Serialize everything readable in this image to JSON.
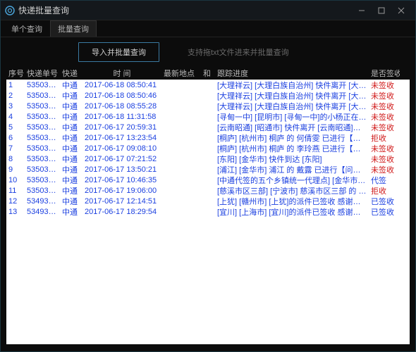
{
  "window": {
    "title": "快递批量查询"
  },
  "tabs": [
    {
      "label": "单个查询",
      "active": false
    },
    {
      "label": "批量查询",
      "active": true
    }
  ],
  "toolbar": {
    "import_button": "导入并批量查询",
    "hint": "支持拖txt文件进来并批量查询"
  },
  "columns": {
    "idx": "序号",
    "no": "快递单号",
    "exp": "快递",
    "time": "时 间",
    "loc": "最新地点",
    "sep": "和",
    "prog": "跟踪进度",
    "sign": "是否签收"
  },
  "rows": [
    {
      "idx": "1",
      "no": "535034",
      "exp": "中通",
      "time": "2017-06-18 08:50:41",
      "prog": "[大理祥云] [大理白族自治州] 快件离开 [大理祥云]...",
      "sign": "未签收",
      "signed": false
    },
    {
      "idx": "2",
      "no": "535034",
      "exp": "中通",
      "time": "2017-06-18 08:50:46",
      "prog": "[大理祥云] [大理白族自治州] 快件离开 [大理祥云]...",
      "sign": "未签收",
      "signed": false
    },
    {
      "idx": "3",
      "no": "53503",
      "exp": "中通",
      "time": "2017-06-18 08:55:28",
      "prog": "[大理祥云] [大理白族自治州] 快件离开 [大理祥云]...",
      "sign": "未签收",
      "signed": false
    },
    {
      "idx": "4",
      "no": "53503",
      "exp": "中通",
      "time": "2017-06-18 11:31:58",
      "prog": "[寻甸一中] [昆明市] [寻甸一中]的小杨正在第1次派...",
      "sign": "未签收",
      "signed": false
    },
    {
      "idx": "5",
      "no": "53503",
      "exp": "中通",
      "time": "2017-06-17 20:59:31",
      "prog": "[云南昭通] [昭通市] 快件离开 [云南昭通]已发往[昭...",
      "sign": "未签收",
      "signed": false
    },
    {
      "idx": "6",
      "no": "53503",
      "exp": "中通",
      "time": "2017-06-17 13:23:54",
      "prog": "[桐庐] [杭州市] 桐庐 的 何倩雯 已进行【问题件】...",
      "sign": "拒收",
      "signed": false
    },
    {
      "idx": "7",
      "no": "53503",
      "exp": "中通",
      "time": "2017-06-17 09:08:10",
      "prog": "[桐庐] [杭州市] 桐庐 的 李玲燕 已进行【问题件】上...",
      "sign": "未签收",
      "signed": false
    },
    {
      "idx": "8",
      "no": "53503",
      "exp": "中通",
      "time": "2017-06-17 07:21:52",
      "prog": "[东阳] [金华市] 快件到达 [东阳]",
      "sign": "未签收",
      "signed": false
    },
    {
      "idx": "9",
      "no": "53503",
      "exp": "中通",
      "time": "2017-06-17 13:50:21",
      "prog": "[浦江] [金华市] 浦江 的 戴露 已进行【问题件】上...",
      "sign": "未签收",
      "signed": false
    },
    {
      "idx": "10",
      "no": "53503",
      "exp": "中通",
      "time": "2017-06-17 10:46:35",
      "prog": "[中通代签的五个乡镇统一代理点] [金华市] 快件已被...",
      "sign": "代签",
      "signed": true
    },
    {
      "idx": "11",
      "no": "53503",
      "exp": "中通",
      "time": "2017-06-17 19:06:00",
      "prog": "[慈溪市区三部] [宁波市] 慈溪市区三部 的 许航琪 ...",
      "sign": "拒收",
      "signed": false
    },
    {
      "idx": "12",
      "no": "53493",
      "exp": "中通",
      "time": "2017-06-17 12:14:51",
      "prog": "[上犹] [赣州市] [上犹]的派件已签收 感谢使用中通...",
      "sign": "已签收",
      "signed": true
    },
    {
      "idx": "13",
      "no": "53493",
      "exp": "中通",
      "time": "2017-06-17 18:29:54",
      "prog": "[宜川] [上海市] [宜川]的派件已签收 感谢使用中通...",
      "sign": "已签收",
      "signed": true
    }
  ],
  "colors": {
    "link_blue": "#1a3fe0",
    "red": "#d01818",
    "bg_dark": "#0c0c0c",
    "border_accent": "#3b7aa1"
  }
}
